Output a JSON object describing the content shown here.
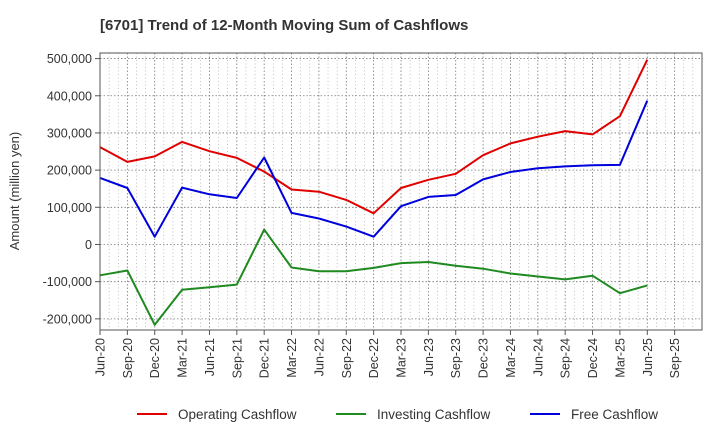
{
  "chart_data": {
    "type": "line",
    "title": "[6701]  Trend of 12-Month Moving Sum of Cashflows",
    "xlabel": "",
    "ylabel": "Amount (million yen)",
    "ylim": [
      -230000,
      515000
    ],
    "yticks": [
      -200000,
      -100000,
      0,
      100000,
      200000,
      300000,
      400000,
      500000
    ],
    "ytick_labels": [
      "-200,000",
      "-100,000",
      "0",
      "100,000",
      "200,000",
      "300,000",
      "400,000",
      "500,000"
    ],
    "x_tick_labels": [
      "Jun-20",
      "Sep-20",
      "Dec-20",
      "Mar-21",
      "Jun-21",
      "Sep-21",
      "Dec-21",
      "Mar-22",
      "Jun-22",
      "Sep-22",
      "Dec-22",
      "Mar-23",
      "Jun-23",
      "Sep-23",
      "Dec-23",
      "Mar-24",
      "Jun-24",
      "Sep-24",
      "Dec-24",
      "Mar-25",
      "Jun-25",
      "Sep-25"
    ],
    "grid": true,
    "legend_position": "bottom",
    "series": [
      {
        "name": "Operating Cashflow",
        "color": "#e00000",
        "values": [
          262000,
          222000,
          237000,
          276000,
          251000,
          233000,
          196000,
          148000,
          142000,
          120000,
          84000,
          152000,
          174000,
          190000,
          240000,
          272000,
          290000,
          305000,
          296000,
          345000,
          497000
        ]
      },
      {
        "name": "Investing Cashflow",
        "color": "#1f8a1f",
        "values": [
          -83000,
          -70000,
          -216000,
          -122000,
          -115000,
          -108000,
          40000,
          -62000,
          -72000,
          -72000,
          -63000,
          -50000,
          -47000,
          -57000,
          -65000,
          -78000,
          -86000,
          -94000,
          -84000,
          -131000,
          -110000
        ]
      },
      {
        "name": "Free Cashflow",
        "color": "#0000dd",
        "values": [
          179000,
          152000,
          21000,
          153000,
          135000,
          125000,
          234000,
          85000,
          70000,
          48000,
          21000,
          103000,
          128000,
          133000,
          175000,
          195000,
          205000,
          210000,
          213000,
          214000,
          387000
        ]
      }
    ]
  }
}
